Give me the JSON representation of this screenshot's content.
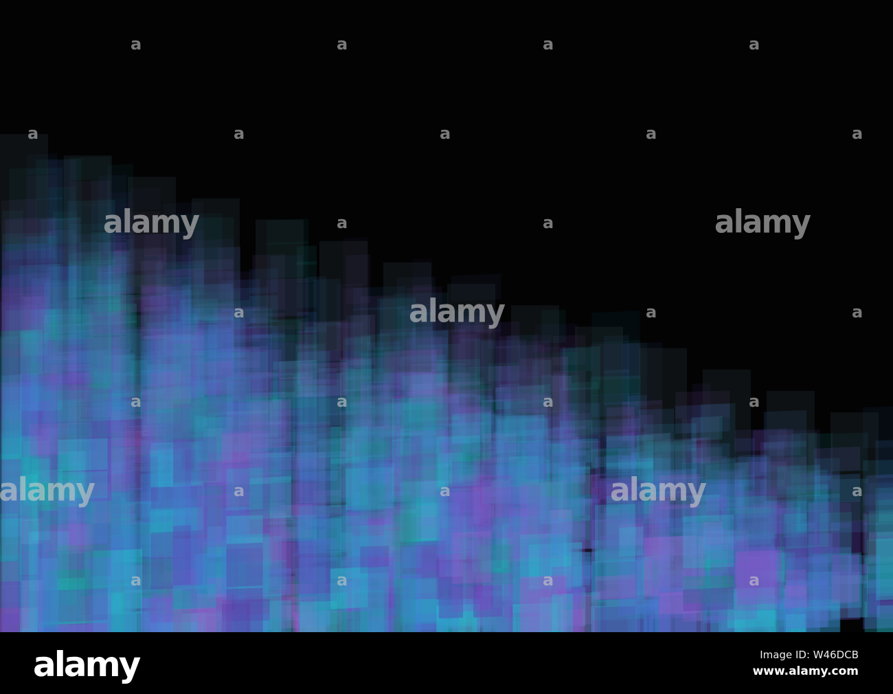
{
  "palette": [
    "#7a55c8",
    "#4f6fd0",
    "#2a9fc0",
    "#27c4d0",
    "#1f8f8a",
    "#5a3ea8",
    "#3f86d8",
    "#9a62c8"
  ],
  "background": "#030304",
  "watermark": {
    "big": "alamy",
    "small": "a"
  },
  "footer": {
    "logo": "alamy",
    "image_id": "Image ID: W46DCB",
    "site": "www.alamy.com"
  }
}
